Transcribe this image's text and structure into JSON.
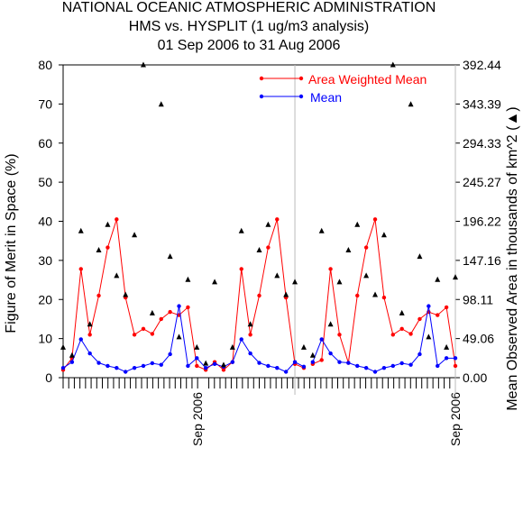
{
  "chart_data": {
    "type": "line",
    "title": [
      "NATIONAL OCEANIC ATMOSPHERIC ADMINISTRATION",
      "HMS vs. HYSPLIT (1 ug/m3 analysis)",
      "01 Sep 2006 to 31 Aug 2006"
    ],
    "ylabel": "Figure of Merit in Space (%)",
    "y2label": "Mean Observed Area in thousands of km^2 (▲)",
    "ylim": [
      0,
      80
    ],
    "y_ticks": [
      0,
      10,
      20,
      30,
      40,
      50,
      60,
      70,
      80
    ],
    "y2lim": [
      0,
      392.44
    ],
    "y2_tick_labels": [
      "0.00",
      "49.06",
      "98.11",
      "147.16",
      "196.22",
      "245.27",
      "294.33",
      "343.39",
      "392.44"
    ],
    "x_count": 71,
    "x_month_labels": [
      {
        "index": 24,
        "label": "Sep 2006"
      },
      {
        "index": 70,
        "label": "Sep 2006"
      }
    ],
    "x_tick_indices": [
      0,
      1,
      2,
      3,
      4,
      5,
      6,
      7,
      8,
      9,
      10,
      11,
      12,
      13,
      14,
      15,
      16,
      17,
      18,
      19,
      20,
      21,
      22,
      23,
      24,
      26,
      27,
      28,
      29,
      30,
      31,
      32,
      33,
      34,
      35,
      36,
      37,
      38,
      39,
      40,
      41,
      42,
      43,
      44,
      45,
      46,
      47,
      48,
      49,
      50,
      51,
      52,
      53,
      54,
      55,
      56,
      57,
      58,
      59,
      60,
      61,
      62,
      63,
      64,
      65,
      66,
      67,
      68,
      69,
      70
    ],
    "separators": [
      26,
      44
    ],
    "legend_position": "top-right",
    "colors": {
      "awm": "#ff0000",
      "mean": "#0000ff",
      "area": "#000000"
    },
    "series": [
      {
        "name": "Area Weighted Mean",
        "color": "#ff0000",
        "segments": [
          [
            [
              0,
              2.0
            ],
            [
              1,
              5.0
            ],
            [
              2,
              27.8
            ],
            [
              3,
              11.0
            ],
            [
              4,
              21.0
            ],
            [
              5,
              33.3
            ],
            [
              6,
              40.5
            ],
            [
              7,
              20.5
            ],
            [
              8,
              11.0
            ],
            [
              9,
              12.5
            ],
            [
              10,
              11.2
            ],
            [
              11,
              15.0
            ],
            [
              12,
              16.8
            ],
            [
              13,
              16.0
            ],
            [
              14,
              18.0
            ],
            [
              15,
              3.0
            ],
            [
              16,
              2.0
            ],
            [
              17,
              4.0
            ],
            [
              18,
              2.0
            ],
            [
              19,
              4.0
            ],
            [
              20,
              27.8
            ],
            [
              21,
              11.0
            ],
            [
              22,
              21.0
            ],
            [
              23,
              33.3
            ],
            [
              24,
              40.5
            ],
            [
              25,
              20.5
            ],
            [
              26,
              3.5
            ],
            [
              27,
              2.5
            ]
          ],
          [
            [
              28,
              3.5
            ],
            [
              29,
              4.5
            ],
            [
              30,
              27.8
            ],
            [
              31,
              11.0
            ],
            [
              32,
              3.8
            ],
            [
              33,
              21.0
            ],
            [
              34,
              33.3
            ],
            [
              35,
              40.5
            ],
            [
              36,
              20.5
            ],
            [
              37,
              11.0
            ],
            [
              38,
              12.5
            ],
            [
              39,
              11.2
            ],
            [
              40,
              15.0
            ],
            [
              41,
              16.8
            ],
            [
              42,
              16.0
            ],
            [
              43,
              18.0
            ],
            [
              44,
              3.0
            ]
          ]
        ]
      },
      {
        "name": "Mean",
        "color": "#0000ff",
        "segments": [
          [
            [
              0,
              2.5
            ],
            [
              1,
              4.0
            ],
            [
              2,
              9.8
            ],
            [
              3,
              6.2
            ],
            [
              4,
              3.8
            ],
            [
              5,
              3.0
            ],
            [
              6,
              2.5
            ],
            [
              7,
              1.5
            ],
            [
              8,
              2.5
            ],
            [
              9,
              3.0
            ],
            [
              10,
              3.7
            ],
            [
              11,
              3.3
            ],
            [
              12,
              6.0
            ],
            [
              13,
              18.3
            ],
            [
              14,
              3.0
            ],
            [
              15,
              5.0
            ],
            [
              16,
              2.5
            ],
            [
              17,
              3.5
            ],
            [
              18,
              2.8
            ],
            [
              19,
              4.0
            ],
            [
              20,
              9.8
            ],
            [
              21,
              6.2
            ],
            [
              22,
              3.8
            ],
            [
              23,
              3.0
            ],
            [
              24,
              2.5
            ],
            [
              25,
              1.5
            ],
            [
              26,
              4.0
            ],
            [
              27,
              2.8
            ]
          ],
          [
            [
              28,
              4.0
            ],
            [
              29,
              9.8
            ],
            [
              30,
              6.2
            ],
            [
              31,
              4.0
            ],
            [
              32,
              3.8
            ],
            [
              33,
              3.0
            ],
            [
              34,
              2.5
            ],
            [
              35,
              1.5
            ],
            [
              36,
              2.5
            ],
            [
              37,
              3.0
            ],
            [
              38,
              3.7
            ],
            [
              39,
              3.3
            ],
            [
              40,
              6.0
            ],
            [
              41,
              18.3
            ],
            [
              42,
              3.0
            ],
            [
              43,
              5.0
            ],
            [
              44,
              5.0
            ]
          ]
        ]
      },
      {
        "name": "Mean Observed Area",
        "color": "#000000",
        "axis": "right",
        "points": [
          [
            0,
            38.0
          ],
          [
            1,
            28.0
          ],
          [
            2,
            184.0
          ],
          [
            3,
            67.0
          ],
          [
            4,
            160.0
          ],
          [
            5,
            192.0
          ],
          [
            6,
            128.0
          ],
          [
            7,
            104.0
          ],
          [
            8,
            179.0
          ],
          [
            9,
            392.44
          ],
          [
            10,
            81.0
          ],
          [
            11,
            343.0
          ],
          [
            12,
            152.0
          ],
          [
            13,
            51.0
          ],
          [
            14,
            123.0
          ],
          [
            15,
            38.0
          ],
          [
            16,
            18.0
          ],
          [
            17,
            120.0
          ],
          [
            18,
            16.0
          ],
          [
            19,
            38.0
          ],
          [
            20,
            184.0
          ],
          [
            21,
            67.0
          ],
          [
            22,
            160.0
          ],
          [
            23,
            192.0
          ],
          [
            24,
            128.0
          ],
          [
            25,
            104.0
          ],
          [
            26,
            120.0
          ],
          [
            27,
            38.0
          ],
          [
            28,
            28.0
          ],
          [
            29,
            184.0
          ],
          [
            30,
            67.0
          ],
          [
            31,
            120.0
          ],
          [
            32,
            160.0
          ],
          [
            33,
            192.0
          ],
          [
            34,
            128.0
          ],
          [
            35,
            104.0
          ],
          [
            36,
            179.0
          ],
          [
            37,
            392.44
          ],
          [
            38,
            81.0
          ],
          [
            39,
            343.0
          ],
          [
            40,
            152.0
          ],
          [
            41,
            51.0
          ],
          [
            42,
            123.0
          ],
          [
            43,
            38.0
          ],
          [
            44,
            126.0
          ]
        ]
      }
    ]
  }
}
